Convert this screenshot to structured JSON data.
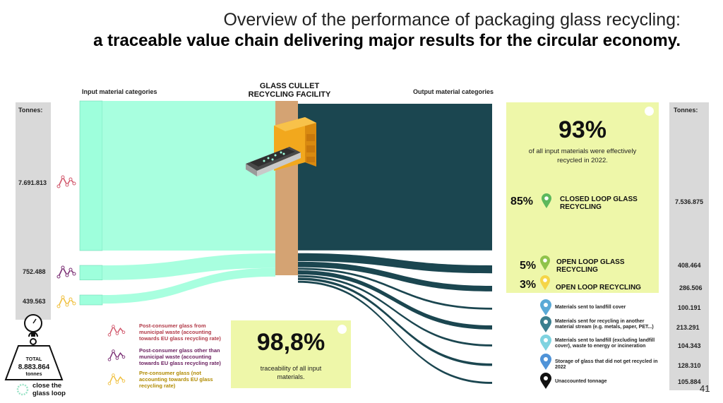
{
  "title_line1": "Overview of the performance of packaging glass recycling:",
  "title_line2": "a traceable value chain delivering major results for the circular economy.",
  "header_input": "Input material categories",
  "header_facility_1": "GLASS CULLET",
  "header_facility_2": "RECYCLING FACILITY",
  "header_output": "Output material categories",
  "tonnes_label": "Tonnes:",
  "headline": {
    "pct": "93%",
    "text_line1": "of all input materials were effectively",
    "text_line2": "recycled in 2022."
  },
  "traceability": {
    "pct": "98,8%",
    "text_line1": "traceability of all input",
    "text_line2": "materials."
  },
  "total": {
    "label": "TOTAL",
    "value": "8.883.864",
    "unit": "tonnes"
  },
  "close_loop_1": "close the",
  "close_loop_2": "glass loop",
  "page_number": "41",
  "legend": [
    {
      "text": "Post-consumer glass from municipal waste (accounting towards EU glass recycling rate)",
      "color": "#d1576b"
    },
    {
      "text": "Post-consumer glass other than municipal waste (accounting towards EU glass recycling rate)",
      "color": "#7b2f74"
    },
    {
      "text": "Pre-consumer glass (not accounting towards EU glass recycling rate)",
      "color": "#f0c040"
    }
  ],
  "colors": {
    "input_flow": "#9effdc",
    "output_flow": "#1b4650",
    "facility": "#d4a373",
    "panel": "#eef7a9",
    "tonnes_col": "#d9d9d9"
  },
  "chart_data": {
    "type": "sankey",
    "unit": "Tonnes",
    "inputs": [
      {
        "name": "Post-consumer glass from municipal waste (accounting towards EU glass recycling rate)",
        "value": 7691813,
        "label": "7.691.813"
      },
      {
        "name": "Post-consumer glass other than municipal waste (accounting towards EU glass recycling rate)",
        "value": 752488,
        "label": "752.488"
      },
      {
        "name": "Pre-consumer glass (not accounting towards EU glass recycling rate)",
        "value": 439563,
        "label": "439.563"
      }
    ],
    "node": "GLASS CULLET RECYCLING FACILITY",
    "outputs": [
      {
        "name": "CLOSED LOOP GLASS RECYCLING",
        "pct": "85%",
        "value": 7536875,
        "label": "7.536.875",
        "pin": "#5cb85c"
      },
      {
        "name": "OPEN LOOP GLASS RECYCLING",
        "pct": "5%",
        "value": 408464,
        "label": "408.464",
        "pin": "#8fc34a"
      },
      {
        "name": "OPEN LOOP RECYCLING",
        "pct": "3%",
        "value": 286506,
        "label": "286.506",
        "pin": "#f5d547"
      },
      {
        "name": "Materials sent to landfill cover",
        "pct": "",
        "value": 100191,
        "label": "100.191",
        "pin": "#5aa9d6"
      },
      {
        "name": "Materials sent for recycling in another material stream (e.g. metals, paper, PET...)",
        "pct": "",
        "value": 213291,
        "label": "213.291",
        "pin": "#3b7f8f"
      },
      {
        "name": "Materials sent to landfill (excluding landfill cover), waste to energy or incineration",
        "pct": "",
        "value": 104343,
        "label": "104.343",
        "pin": "#7fd3e0"
      },
      {
        "name": "Storage of glass that did not get recycled in 2022",
        "pct": "",
        "value": 128310,
        "label": "128.310",
        "pin": "#4f93d8"
      },
      {
        "name": "Unaccounted tonnage",
        "pct": "",
        "value": 105884,
        "label": "105.884",
        "pin": "#111111"
      }
    ],
    "total": 8883864
  }
}
